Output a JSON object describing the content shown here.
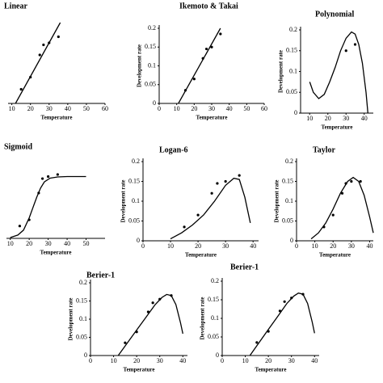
{
  "chart_data": [
    {
      "type": "scatter",
      "title": "Linear",
      "xlabel": "Temperature",
      "xlim": [
        8,
        60
      ],
      "ylim": [
        0,
        0.2
      ],
      "xticks": [
        10,
        20,
        30,
        40,
        50,
        60
      ],
      "series": [
        {
          "type": "scatter",
          "color": "#000000",
          "x": [
            15,
            20,
            25,
            27,
            30,
            35
          ],
          "values": [
            0.035,
            0.065,
            0.12,
            0.145,
            0.15,
            0.165
          ]
        },
        {
          "type": "line",
          "color": "#000000",
          "x": [
            12,
            36
          ],
          "values": [
            0,
            0.2
          ]
        }
      ]
    },
    {
      "type": "scatter",
      "title": "Ikemoto & Takai",
      "xlabel": "Temperature",
      "ylabel": "Development rate",
      "xlim": [
        0,
        60
      ],
      "ylim": [
        0,
        0.2
      ],
      "xticks": [
        0,
        10,
        20,
        30,
        40,
        50,
        60
      ],
      "yticks": [
        0,
        0.05,
        0.1,
        0.15,
        0.2
      ],
      "series": [
        {
          "type": "scatter",
          "color": "#000000",
          "x": [
            15,
            20,
            25,
            27,
            30,
            35
          ],
          "values": [
            0.035,
            0.065,
            0.12,
            0.145,
            0.15,
            0.185
          ]
        },
        {
          "type": "line",
          "color": "#000000",
          "x": [
            11,
            35
          ],
          "values": [
            0,
            0.2
          ]
        }
      ]
    },
    {
      "type": "scatter",
      "title": "Polynomial",
      "xlabel": "Temperature",
      "ylabel": "Development rate",
      "xlim": [
        5,
        45
      ],
      "ylim": [
        0,
        0.2
      ],
      "xticks": [
        10,
        20,
        30,
        40
      ],
      "yticks": [
        0,
        0.05,
        0.1,
        0.15,
        0.2
      ],
      "series": [
        {
          "type": "scatter",
          "color": "#000000",
          "x": [
            30,
            35
          ],
          "values": [
            0.15,
            0.165
          ]
        },
        {
          "type": "line",
          "color": "#000000",
          "x": [
            10,
            12,
            15,
            18,
            21,
            24,
            27,
            30,
            33,
            35,
            37,
            39,
            41,
            42
          ],
          "values": [
            0.075,
            0.05,
            0.035,
            0.045,
            0.075,
            0.11,
            0.15,
            0.18,
            0.195,
            0.19,
            0.165,
            0.12,
            0.05,
            0
          ]
        }
      ]
    },
    {
      "type": "scatter",
      "title": "Sigmoid",
      "xlabel": "Temperature",
      "xlim": [
        8,
        60
      ],
      "ylim": [
        0,
        0.2
      ],
      "xticks": [
        10,
        20,
        30,
        40,
        50
      ],
      "series": [
        {
          "type": "scatter",
          "color": "#000000",
          "x": [
            15,
            20,
            25,
            27,
            30,
            35
          ],
          "values": [
            0.03,
            0.045,
            0.11,
            0.145,
            0.15,
            0.155
          ]
        },
        {
          "type": "line",
          "color": "#000000",
          "x": [
            10,
            14,
            17,
            20,
            22,
            24,
            26,
            28,
            31,
            35,
            40,
            50
          ],
          "values": [
            0.002,
            0.008,
            0.02,
            0.05,
            0.075,
            0.1,
            0.122,
            0.137,
            0.146,
            0.149,
            0.15,
            0.15
          ]
        }
      ]
    },
    {
      "type": "scatter",
      "title": "Logan-6",
      "xlabel": "Temperature",
      "ylabel": "Development rate",
      "xlim": [
        0,
        42
      ],
      "ylim": [
        0,
        0.2
      ],
      "xticks": [
        0,
        10,
        20,
        30,
        40
      ],
      "yticks": [
        0,
        0.05,
        0.1,
        0.15,
        0.2
      ],
      "series": [
        {
          "type": "scatter",
          "color": "#000000",
          "x": [
            15,
            20,
            25,
            27,
            30,
            35
          ],
          "values": [
            0.035,
            0.065,
            0.12,
            0.145,
            0.15,
            0.165
          ]
        },
        {
          "type": "line",
          "color": "#000000",
          "x": [
            10,
            14,
            18,
            22,
            26,
            30,
            33,
            35,
            37,
            39
          ],
          "values": [
            0.005,
            0.02,
            0.04,
            0.065,
            0.1,
            0.14,
            0.158,
            0.155,
            0.11,
            0.045
          ]
        }
      ]
    },
    {
      "type": "scatter",
      "title": "Taylor",
      "xlabel": "Temperature",
      "ylabel": "Development rate",
      "xlim": [
        0,
        42
      ],
      "ylim": [
        0,
        0.2
      ],
      "xticks": [
        0,
        10,
        20,
        30,
        40
      ],
      "yticks": [
        0,
        0.05,
        0.1,
        0.15,
        0.2
      ],
      "series": [
        {
          "type": "scatter",
          "color": "#000000",
          "x": [
            15,
            20,
            25,
            27,
            30,
            35
          ],
          "values": [
            0.035,
            0.065,
            0.12,
            0.145,
            0.15,
            0.15
          ]
        },
        {
          "type": "line",
          "color": "#000000",
          "x": [
            8,
            12,
            16,
            20,
            24,
            28,
            31,
            34,
            37,
            40,
            42
          ],
          "values": [
            0.005,
            0.02,
            0.045,
            0.08,
            0.12,
            0.15,
            0.16,
            0.15,
            0.115,
            0.06,
            0.02
          ]
        }
      ]
    },
    {
      "type": "scatter",
      "title": "Berier-1",
      "xlabel": "Temperature",
      "ylabel": "Development rate",
      "xlim": [
        0,
        42
      ],
      "ylim": [
        0,
        0.2
      ],
      "xticks": [
        0,
        10,
        20,
        30,
        40
      ],
      "yticks": [
        0,
        0.05,
        0.1,
        0.15,
        0.2
      ],
      "series": [
        {
          "type": "scatter",
          "color": "#000000",
          "x": [
            15,
            20,
            25,
            27,
            30,
            35
          ],
          "values": [
            0.035,
            0.065,
            0.12,
            0.145,
            0.155,
            0.165
          ]
        },
        {
          "type": "line",
          "color": "#000000",
          "x": [
            12,
            16,
            20,
            24,
            28,
            31,
            33,
            35,
            37,
            39,
            40
          ],
          "values": [
            0,
            0.035,
            0.07,
            0.105,
            0.14,
            0.16,
            0.168,
            0.165,
            0.14,
            0.09,
            0.06
          ]
        }
      ]
    },
    {
      "type": "scatter",
      "title": "Berier-1",
      "xlabel": "Temperature",
      "ylabel": "Development rate",
      "xlim": [
        0,
        42
      ],
      "ylim": [
        0,
        0.2
      ],
      "xticks": [
        0,
        10,
        20,
        30,
        40
      ],
      "yticks": [
        0,
        0.05,
        0.1,
        0.15,
        0.2
      ],
      "series": [
        {
          "type": "scatter",
          "color": "#000000",
          "x": [
            15,
            20,
            25,
            27,
            30,
            35
          ],
          "values": [
            0.035,
            0.065,
            0.12,
            0.145,
            0.155,
            0.165
          ]
        },
        {
          "type": "line",
          "color": "#000000",
          "x": [
            12,
            16,
            20,
            24,
            28,
            31,
            33,
            35,
            37,
            39,
            40
          ],
          "values": [
            0,
            0.035,
            0.07,
            0.105,
            0.14,
            0.16,
            0.168,
            0.165,
            0.14,
            0.09,
            0.06
          ]
        }
      ]
    }
  ]
}
